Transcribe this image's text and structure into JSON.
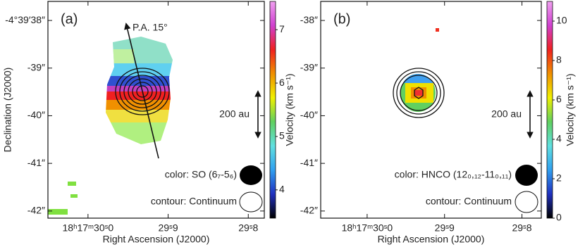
{
  "chart_data": [
    {
      "type": "map",
      "label": "(a)",
      "xlabel": "Right Ascension (J2000)",
      "ylabel": "Declination (J2000)",
      "xlim": [
        30.05,
        29.78
      ],
      "xticks": [
        {
          "value": 30.0,
          "label": "18ʰ17ᵐ30ˢ0"
        },
        {
          "value": 29.9,
          "label": "29ˢ9"
        },
        {
          "value": 29.8,
          "label": "29ˢ8"
        }
      ],
      "ylim": [
        -42.15,
        -37.6
      ],
      "yticks": [
        {
          "value": -38,
          "label": "-4°39′38″"
        },
        {
          "value": -39,
          "label": "-39″"
        },
        {
          "value": -40,
          "label": "-40″"
        },
        {
          "value": -41,
          "label": "-41″"
        },
        {
          "value": -42,
          "label": "-42″"
        }
      ],
      "colorbar": {
        "label": "Velocity (km s⁻¹)",
        "lim": [
          3.47,
          7.53
        ],
        "ticks": [
          4,
          5,
          6,
          7
        ],
        "colors": [
          "#000000",
          "#2030c0",
          "#30a0f0",
          "#60e0e0",
          "#60d060",
          "#f0f000",
          "#f09000",
          "#f02020",
          "#d040d0",
          "#f0a0f0"
        ]
      },
      "direction_label": "P.A. 15°",
      "scale_label": "200 au",
      "color_label": "color: SO (6₇-5₆)",
      "contour_label": "contour: Continuum"
    },
    {
      "type": "map",
      "label": "(b)",
      "xlabel": "Right Ascension (J2000)",
      "xlim": [
        30.06,
        29.775
      ],
      "xticks": [
        {
          "value": 30.0,
          "label": "18ʰ17ᵐ30ˢ0"
        },
        {
          "value": 29.9,
          "label": "29ˢ9"
        },
        {
          "value": 29.8,
          "label": "29ˢ8"
        }
      ],
      "ylim": [
        -42.15,
        -37.6
      ],
      "yticks": [
        {
          "value": -38,
          "label": "-38″"
        },
        {
          "value": -39,
          "label": "-39″"
        },
        {
          "value": -40,
          "label": "-40″"
        },
        {
          "value": -41,
          "label": "-41″"
        },
        {
          "value": -42,
          "label": "-42″"
        }
      ],
      "colorbar": {
        "label": "Velocity (km s⁻¹)",
        "lim": [
          0,
          11
        ],
        "ticks": [
          0,
          2,
          4,
          6,
          8,
          10
        ],
        "colors": [
          "#000000",
          "#2030c0",
          "#30a0f0",
          "#60e0e0",
          "#60d060",
          "#f0f000",
          "#f09000",
          "#f02020",
          "#d040d0",
          "#f0a0f0"
        ]
      },
      "scale_label": "200 au",
      "color_label": "color: HNCO (12₀,₁₂-11₀,₁₁)",
      "contour_label": "contour: Continuum"
    }
  ]
}
